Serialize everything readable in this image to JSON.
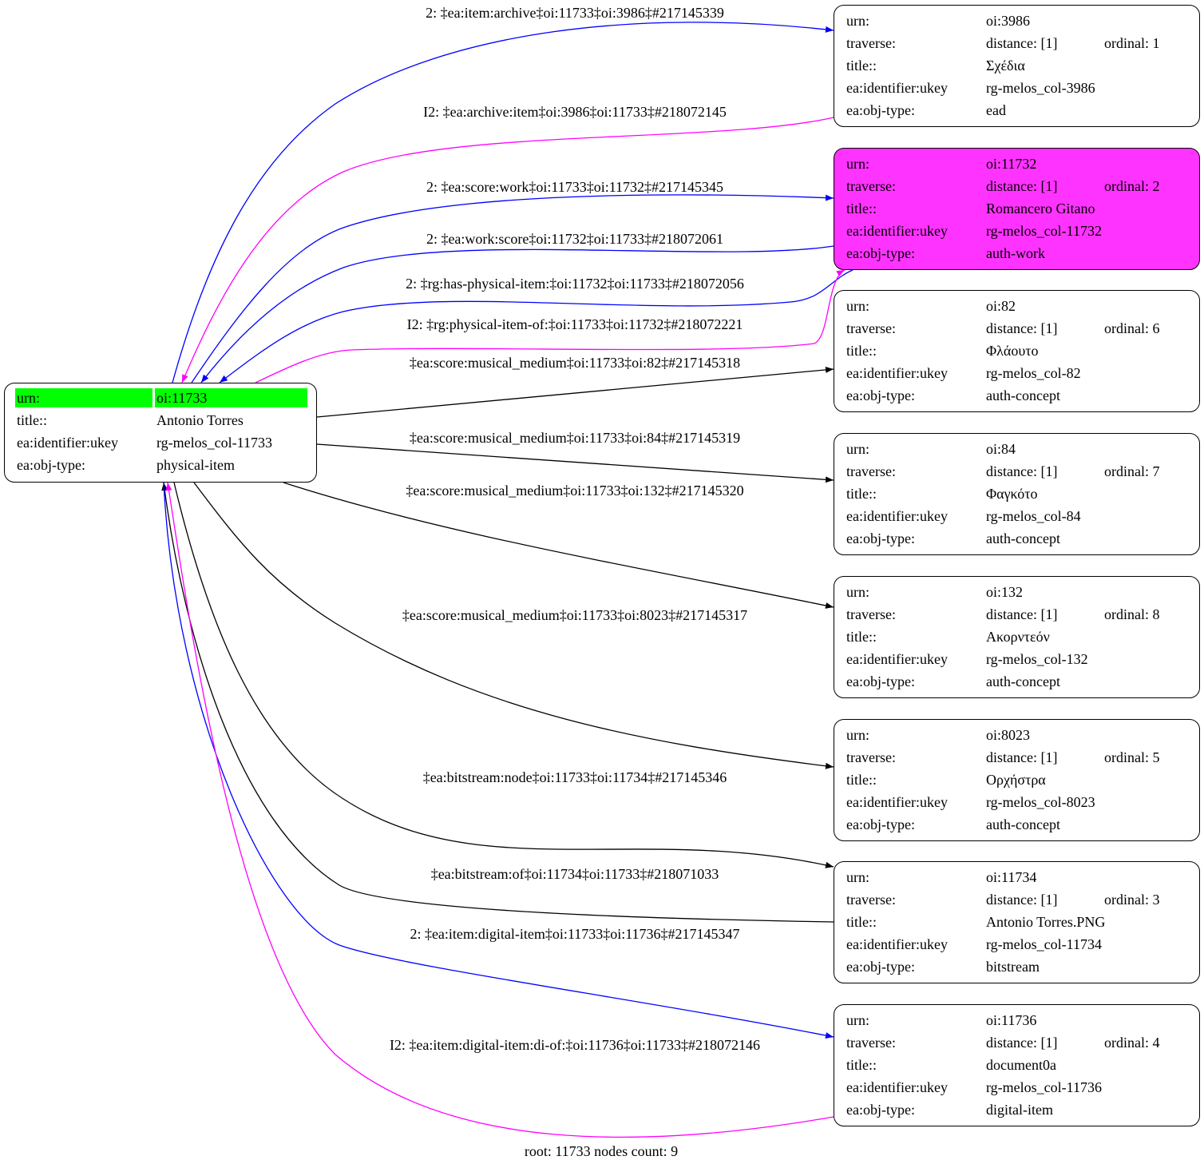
{
  "colors": {
    "blue": "#0000ff",
    "magenta": "#ff00ff",
    "black": "#000000",
    "root_highlight": "#00ff00",
    "selected_node_fill": "#ff33ff"
  },
  "root_node": {
    "rows": [
      {
        "key": "urn:",
        "value": "oi:11733"
      },
      {
        "key": "title::",
        "value": "Antonio Torres"
      },
      {
        "key": "ea:identifier:ukey",
        "value": "rg-melos_col-11733"
      },
      {
        "key": "ea:obj-type:",
        "value": "physical-item"
      }
    ]
  },
  "nodes": [
    {
      "urn": "oi:3986",
      "traverse": "distance: [1]",
      "ordinal": "ordinal: 1",
      "title": "Σχέδια",
      "ukey": "rg-melos_col-3986",
      "obj_type": "ead",
      "highlighted": false
    },
    {
      "urn": "oi:11732",
      "traverse": "distance: [1]",
      "ordinal": "ordinal: 2",
      "title": "Romancero Gitano",
      "ukey": "rg-melos_col-11732",
      "obj_type": "auth-work",
      "highlighted": true
    },
    {
      "urn": "oi:82",
      "traverse": "distance: [1]",
      "ordinal": "ordinal: 6",
      "title": "Φλάουτο",
      "ukey": "rg-melos_col-82",
      "obj_type": "auth-concept",
      "highlighted": false
    },
    {
      "urn": "oi:84",
      "traverse": "distance: [1]",
      "ordinal": "ordinal: 7",
      "title": "Φαγκότο",
      "ukey": "rg-melos_col-84",
      "obj_type": "auth-concept",
      "highlighted": false
    },
    {
      "urn": "oi:132",
      "traverse": "distance: [1]",
      "ordinal": "ordinal: 8",
      "title": "Ακορντεόν",
      "ukey": "rg-melos_col-132",
      "obj_type": "auth-concept",
      "highlighted": false
    },
    {
      "urn": "oi:8023",
      "traverse": "distance: [1]",
      "ordinal": "ordinal: 5",
      "title": "Ορχήστρα",
      "ukey": "rg-melos_col-8023",
      "obj_type": "auth-concept",
      "highlighted": false
    },
    {
      "urn": "oi:11734",
      "traverse": "distance: [1]",
      "ordinal": "ordinal: 3",
      "title": "Antonio Torres.PNG",
      "ukey": "rg-melos_col-11734",
      "obj_type": "bitstream",
      "highlighted": false
    },
    {
      "urn": "oi:11736",
      "traverse": "distance: [1]",
      "ordinal": "ordinal: 4",
      "title": "document0a",
      "ukey": "rg-melos_col-11736",
      "obj_type": "digital-item",
      "highlighted": false
    }
  ],
  "node_keys": {
    "urn": "urn:",
    "traverse": "traverse:",
    "title": "title::",
    "ukey": "ea:identifier:ukey",
    "obj_type": "ea:obj-type:"
  },
  "edges": [
    {
      "label": "2: ‡ea:item:archive‡oi:11733‡oi:3986‡#217145339",
      "color": "blue"
    },
    {
      "label": "I2: ‡ea:archive:item‡oi:3986‡oi:11733‡#218072145",
      "color": "magenta"
    },
    {
      "label": "2: ‡ea:score:work‡oi:11733‡oi:11732‡#217145345",
      "color": "blue"
    },
    {
      "label": "2: ‡ea:work:score‡oi:11732‡oi:11733‡#218072061",
      "color": "blue"
    },
    {
      "label": "2: ‡rg:has-physical-item:‡oi:11732‡oi:11733‡#218072056",
      "color": "blue"
    },
    {
      "label": "I2: ‡rg:physical-item-of:‡oi:11733‡oi:11732‡#218072221",
      "color": "magenta"
    },
    {
      "label": "‡ea:score:musical_medium‡oi:11733‡oi:82‡#217145318",
      "color": "black"
    },
    {
      "label": "‡ea:score:musical_medium‡oi:11733‡oi:84‡#217145319",
      "color": "black"
    },
    {
      "label": "‡ea:score:musical_medium‡oi:11733‡oi:132‡#217145320",
      "color": "black"
    },
    {
      "label": "‡ea:score:musical_medium‡oi:11733‡oi:8023‡#217145317",
      "color": "black"
    },
    {
      "label": "‡ea:bitstream:node‡oi:11733‡oi:11734‡#217145346",
      "color": "black"
    },
    {
      "label": "‡ea:bitstream:of‡oi:11734‡oi:11733‡#218071033",
      "color": "black"
    },
    {
      "label": "2: ‡ea:item:digital-item‡oi:11733‡oi:11736‡#217145347",
      "color": "blue"
    },
    {
      "label": "I2: ‡ea:item:digital-item:di-of:‡oi:11736‡oi:11733‡#218072146",
      "color": "magenta"
    }
  ],
  "footer": "root: 11733 nodes count: 9"
}
